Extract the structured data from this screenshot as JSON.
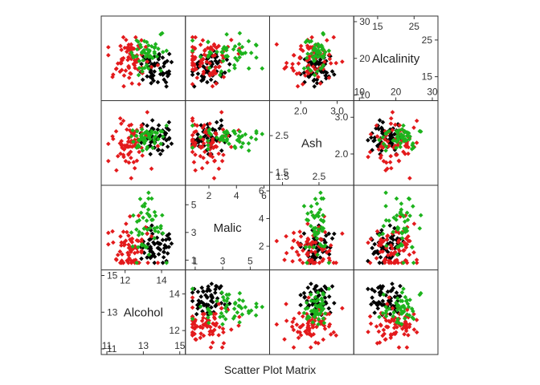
{
  "chart_data": {
    "type": "scatter",
    "title": "Scatter Plot Matrix",
    "variables": [
      {
        "name": "Alcohol",
        "range": [
          11,
          15
        ],
        "ticks": [
          11,
          12,
          13,
          14,
          15
        ]
      },
      {
        "name": "Malic",
        "range": [
          0.7,
          6.0
        ],
        "ticks": [
          1,
          2,
          3,
          4,
          5,
          6
        ]
      },
      {
        "name": "Ash",
        "range": [
          1.3,
          3.3
        ],
        "ticks": [
          1.5,
          2.0,
          2.5,
          3.0
        ]
      },
      {
        "name": "Alcalinity",
        "range": [
          10,
          30
        ],
        "ticks": [
          10,
          15,
          20,
          25,
          30
        ]
      }
    ],
    "grid": false,
    "legend": "none",
    "groups": [
      {
        "color": "#000000",
        "centers": {
          "Alcohol": 13.75,
          "Malic": 2.0,
          "Ash": 2.45,
          "Alcalinity": 17.0
        },
        "spread": {
          "Alcohol": 0.45,
          "Malic": 0.6,
          "Ash": 0.22,
          "Alcalinity": 2.5
        },
        "count": 59
      },
      {
        "color": "#e31a1c",
        "centers": {
          "Alcohol": 12.3,
          "Malic": 1.9,
          "Ash": 2.25,
          "Alcalinity": 20.0
        },
        "spread": {
          "Alcohol": 0.55,
          "Malic": 1.0,
          "Ash": 0.32,
          "Alcalinity": 3.3
        },
        "count": 71
      },
      {
        "color": "#1db31d",
        "centers": {
          "Alcohol": 13.15,
          "Malic": 3.3,
          "Ash": 2.45,
          "Alcalinity": 21.5
        },
        "spread": {
          "Alcohol": 0.5,
          "Malic": 1.1,
          "Ash": 0.18,
          "Alcalinity": 2.3
        },
        "count": 48
      }
    ]
  }
}
